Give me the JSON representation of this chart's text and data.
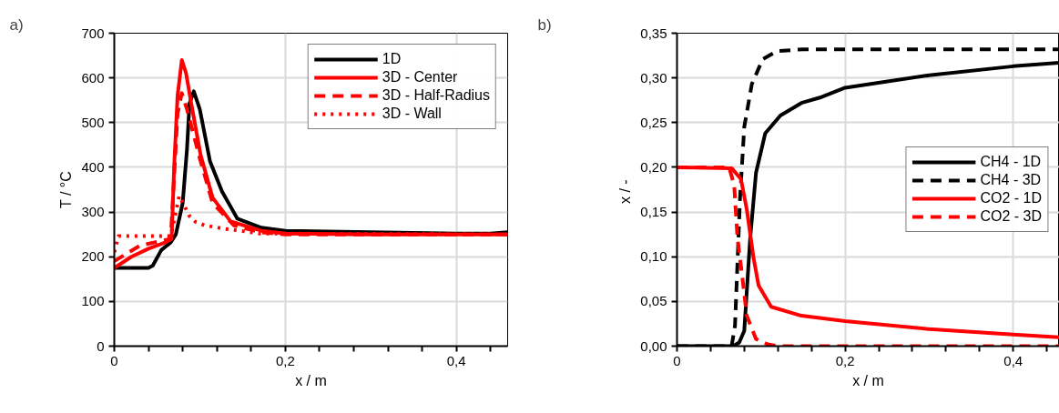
{
  "chart_data": [
    {
      "type": "line",
      "annotations": [
        "a)"
      ],
      "xlabel": "x / m",
      "ylabel": "T / °C",
      "xlim": [
        0,
        0.46
      ],
      "ylim": [
        0,
        700
      ],
      "xticks": [
        {
          "value": 0,
          "label": "0"
        },
        {
          "value": 0.04,
          "label": null
        },
        {
          "value": 0.08,
          "label": null
        },
        {
          "value": 0.12,
          "label": null
        },
        {
          "value": 0.16,
          "label": null
        },
        {
          "value": 0.2,
          "label": "0,2"
        },
        {
          "value": 0.24,
          "label": null
        },
        {
          "value": 0.28,
          "label": null
        },
        {
          "value": 0.32,
          "label": null
        },
        {
          "value": 0.36,
          "label": null
        },
        {
          "value": 0.4,
          "label": "0,4"
        },
        {
          "value": 0.44,
          "label": null
        }
      ],
      "yticks": [
        0,
        100,
        200,
        300,
        400,
        500,
        600,
        700
      ],
      "grid": true,
      "legend": "top right",
      "series": [
        {
          "name": "1D",
          "color": "#000000",
          "line_style": "solid",
          "x": [
            0,
            0.04,
            0.045,
            0.055,
            0.066,
            0.072,
            0.08,
            0.085,
            0.088,
            0.093,
            0.1,
            0.112,
            0.126,
            0.144,
            0.172,
            0.2,
            0.3,
            0.4,
            0.44,
            0.46
          ],
          "values": [
            175,
            175,
            180,
            215,
            232,
            250,
            320,
            440,
            543,
            570,
            530,
            413,
            346,
            285,
            265,
            258,
            255,
            252,
            252,
            255
          ]
        },
        {
          "name": "3D - Center",
          "color": "#ff0000",
          "line_style": "solid",
          "x": [
            0,
            0.02,
            0.04,
            0.06,
            0.067,
            0.07,
            0.074,
            0.079,
            0.084,
            0.09,
            0.101,
            0.115,
            0.136,
            0.172,
            0.2,
            0.3,
            0.46
          ],
          "values": [
            175,
            200,
            218,
            232,
            240,
            400,
            560,
            640,
            610,
            543,
            427,
            332,
            279,
            258,
            252,
            250,
            250
          ]
        },
        {
          "name": "3D - Half-Radius",
          "color": "#ff0000",
          "line_style": "dashed",
          "x": [
            0,
            0.03,
            0.066,
            0.07,
            0.074,
            0.079,
            0.085,
            0.1,
            0.115,
            0.14,
            0.17,
            0.2,
            0.46
          ],
          "values": [
            190,
            225,
            240,
            380,
            520,
            566,
            530,
            420,
            320,
            270,
            255,
            250,
            250
          ]
        },
        {
          "name": "3D - Wall",
          "color": "#ff0000",
          "line_style": "dotted",
          "x": [
            0,
            0.005,
            0.066,
            0.072,
            0.076,
            0.088,
            0.095,
            0.106,
            0.119,
            0.13,
            0.14,
            0.17,
            0.46
          ],
          "values": [
            210,
            246,
            246,
            300,
            336,
            291,
            278,
            270,
            266,
            262,
            260,
            252,
            250
          ]
        }
      ]
    },
    {
      "type": "line",
      "annotations": [
        "b)"
      ],
      "xlabel": "x / m",
      "ylabel": "x  / -",
      "xlim": [
        0,
        0.455
      ],
      "ylim": [
        0,
        0.35
      ],
      "xticks": [
        {
          "value": 0,
          "label": "0"
        },
        {
          "value": 0.04,
          "label": null
        },
        {
          "value": 0.08,
          "label": null
        },
        {
          "value": 0.12,
          "label": null
        },
        {
          "value": 0.16,
          "label": null
        },
        {
          "value": 0.2,
          "label": "0,2"
        },
        {
          "value": 0.24,
          "label": null
        },
        {
          "value": 0.28,
          "label": null
        },
        {
          "value": 0.32,
          "label": null
        },
        {
          "value": 0.36,
          "label": null
        },
        {
          "value": 0.4,
          "label": "0,4"
        },
        {
          "value": 0.44,
          "label": null
        }
      ],
      "yticks": [
        {
          "value": 0,
          "label": "0,00"
        },
        {
          "value": 0.05,
          "label": "0,05"
        },
        {
          "value": 0.1,
          "label": "0,10"
        },
        {
          "value": 0.15,
          "label": "0,15"
        },
        {
          "value": 0.2,
          "label": "0,20"
        },
        {
          "value": 0.25,
          "label": "0,25"
        },
        {
          "value": 0.3,
          "label": "0,30"
        },
        {
          "value": 0.35,
          "label": "0,35"
        }
      ],
      "grid": true,
      "legend": "right",
      "series": [
        {
          "name": "CH4 - 1D",
          "color": "#000000",
          "line_style": "solid",
          "x": [
            0,
            0.067,
            0.074,
            0.08,
            0.087,
            0.094,
            0.105,
            0.123,
            0.148,
            0.17,
            0.2,
            0.3,
            0.4,
            0.455
          ],
          "values": [
            0,
            0,
            0.004,
            0.017,
            0.12,
            0.194,
            0.238,
            0.258,
            0.272,
            0.278,
            0.289,
            0.303,
            0.313,
            0.317
          ]
        },
        {
          "name": "CH4 - 3D",
          "color": "#000000",
          "line_style": "dashed",
          "x": [
            0,
            0.065,
            0.069,
            0.075,
            0.08,
            0.089,
            0.102,
            0.119,
            0.15,
            0.455
          ],
          "values": [
            0,
            0,
            0.023,
            0.166,
            0.245,
            0.293,
            0.321,
            0.33,
            0.332,
            0.332
          ]
        },
        {
          "name": "CO2 - 1D",
          "color": "#ff0000",
          "line_style": "solid",
          "x": [
            0,
            0.065,
            0.076,
            0.083,
            0.091,
            0.097,
            0.112,
            0.148,
            0.2,
            0.3,
            0.4,
            0.455
          ],
          "values": [
            0.2,
            0.199,
            0.187,
            0.153,
            0.099,
            0.068,
            0.044,
            0.034,
            0.028,
            0.019,
            0.013,
            0.01
          ]
        },
        {
          "name": "CO2 - 3D",
          "color": "#ff0000",
          "line_style": "dashed",
          "x": [
            0,
            0.062,
            0.068,
            0.072,
            0.078,
            0.083,
            0.094,
            0.108,
            0.12,
            0.455
          ],
          "values": [
            0.2,
            0.2,
            0.18,
            0.12,
            0.075,
            0.034,
            0.008,
            0.002,
            0,
            0
          ]
        }
      ]
    }
  ]
}
